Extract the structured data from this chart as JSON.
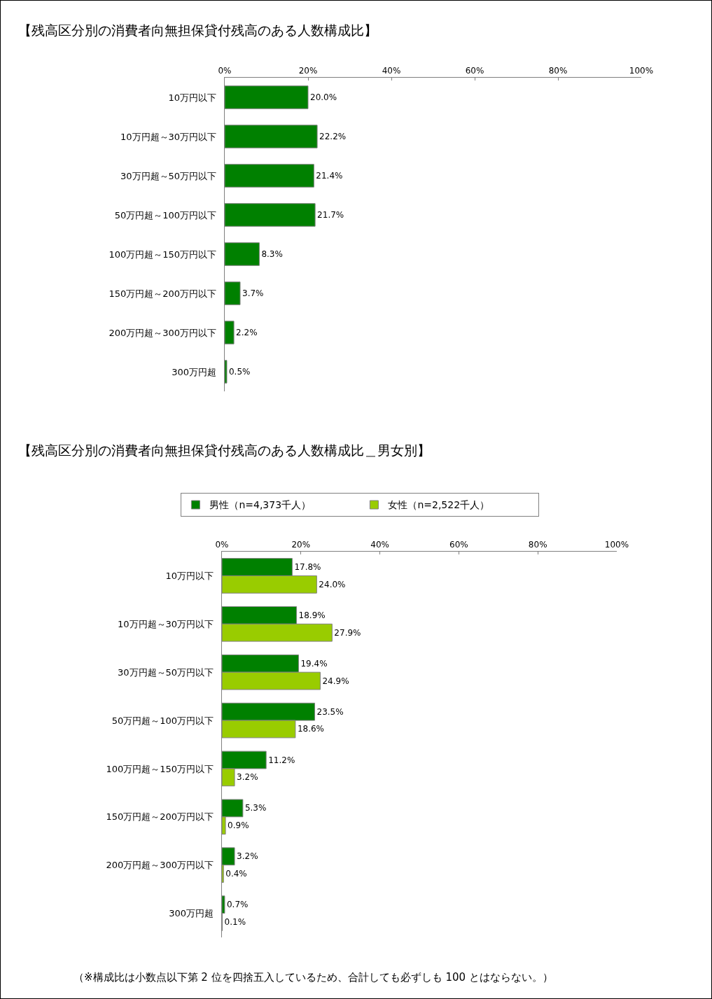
{
  "chart_data": [
    {
      "type": "bar",
      "orientation": "horizontal",
      "title": "【残高区分別の消費者向無担保貸付残高のある人数構成比】",
      "categories": [
        "10万円以下",
        "10万円超～30万円以下",
        "30万円超～50万円以下",
        "50万円超～100万円以下",
        "100万円超～150万円以下",
        "150万円超～200万円以下",
        "200万円超～300万円以下",
        "300万円超"
      ],
      "series": [
        {
          "color": "#008000",
          "values": [
            20.0,
            22.2,
            21.4,
            21.7,
            8.3,
            3.7,
            2.2,
            0.5
          ],
          "value_labels": [
            "20.0%",
            "22.2%",
            "21.4%",
            "21.7%",
            "8.3%",
            "3.7%",
            "2.2%",
            "0.5%"
          ]
        }
      ],
      "xlim": [
        0,
        100
      ],
      "xticks": [
        {
          "value": 0,
          "label": "0%"
        },
        {
          "value": 20,
          "label": "20%"
        },
        {
          "value": 40,
          "label": "40%"
        },
        {
          "value": 60,
          "label": "60%"
        },
        {
          "value": 80,
          "label": "80%"
        },
        {
          "value": 100,
          "label": "100%"
        }
      ],
      "grid": false,
      "legend": false
    },
    {
      "type": "bar",
      "orientation": "horizontal",
      "title": "【残高区分別の消費者向無担保貸付残高のある人数構成比＿男女別】",
      "categories": [
        "10万円以下",
        "10万円超～30万円以下",
        "30万円超～50万円以下",
        "50万円超～100万円以下",
        "100万円超～150万円以下",
        "150万円超～200万円以下",
        "200万円超～300万円以下",
        "300万円超"
      ],
      "series": [
        {
          "name": "男性（n=4,373千人）",
          "color": "#008000",
          "values": [
            17.8,
            18.9,
            19.4,
            23.5,
            11.2,
            5.3,
            3.2,
            0.7
          ],
          "value_labels": [
            "17.8%",
            "18.9%",
            "19.4%",
            "23.5%",
            "11.2%",
            "5.3%",
            "3.2%",
            "0.7%"
          ]
        },
        {
          "name": "女性（n=2,522千人）",
          "color": "#99cc00",
          "values": [
            24.0,
            27.9,
            24.9,
            18.6,
            3.2,
            0.9,
            0.4,
            0.1
          ],
          "value_labels": [
            "24.0%",
            "27.9%",
            "24.9%",
            "18.6%",
            "3.2%",
            "0.9%",
            "0.4%",
            "0.1%"
          ]
        }
      ],
      "xlim": [
        0,
        100
      ],
      "xticks": [
        {
          "value": 0,
          "label": "0%"
        },
        {
          "value": 20,
          "label": "20%"
        },
        {
          "value": 40,
          "label": "40%"
        },
        {
          "value": 60,
          "label": "60%"
        },
        {
          "value": 80,
          "label": "80%"
        },
        {
          "value": 100,
          "label": "100%"
        }
      ],
      "grid": false,
      "legend": "top",
      "annotations": [
        "（※構成比は小数点以下第 2 位を四捨五入しているため、合計しても必ずしも 100 とはならない。）"
      ]
    }
  ]
}
